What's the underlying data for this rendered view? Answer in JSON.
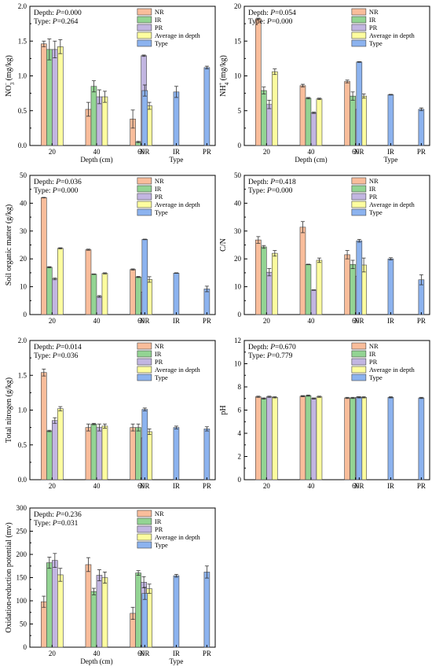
{
  "colors": {
    "NR": "#f9bd9b",
    "IR": "#93d493",
    "PR": "#c2b6e1",
    "Average in depth": "#fdfd9f",
    "Type": "#8cb3ef",
    "stroke": "#444444"
  },
  "chart_data": [
    {
      "type": "bar",
      "ylabel_lines": [
        "NO",
        "3",
        "−",
        " (mg/kg)"
      ],
      "xlabel_depth": "Depth (cm)",
      "xlabel_type": "Type",
      "stats": [
        {
          "prefix": "Depth: ",
          "p": "P",
          "value": "=0.000"
        },
        {
          "prefix": "Type: ",
          "p": "P",
          "value": "=0.264"
        }
      ],
      "ylim": [
        0,
        2.0
      ],
      "yticks": [
        "0.0",
        "0.5",
        "1.0",
        "1.5",
        "2.0"
      ],
      "depth_categories": [
        "20",
        "40",
        "60"
      ],
      "type_categories": [
        "NR",
        "IR",
        "PR"
      ],
      "legend": [
        "NR",
        "IR",
        "PR",
        "Average in depth",
        "Type"
      ],
      "series": [
        {
          "name": "NR",
          "values": [
            1.46,
            0.52,
            0.38
          ],
          "errors": [
            0.04,
            0.1,
            0.13
          ]
        },
        {
          "name": "IR",
          "values": [
            1.38,
            0.85,
            0.05
          ],
          "errors": [
            0.15,
            0.08,
            0.01
          ]
        },
        {
          "name": "PR",
          "values": [
            1.38,
            0.7,
            1.29
          ],
          "errors": [
            0.12,
            0.1,
            0.01
          ]
        },
        {
          "name": "Average in depth",
          "values": [
            1.42,
            0.7,
            0.57
          ],
          "errors": [
            0.1,
            0.08,
            0.05
          ]
        }
      ],
      "type_values": [
        0.79,
        0.77,
        1.12
      ],
      "type_errors": [
        0.08,
        0.08,
        0.02
      ]
    },
    {
      "type": "bar",
      "ylabel_lines": [
        "NH",
        "4",
        "+",
        " (mg/kg)"
      ],
      "xlabel_depth": "Depth (cm)",
      "xlabel_type": "Type",
      "stats": [
        {
          "prefix": "Depth: ",
          "p": "P",
          "value": "=0.054"
        },
        {
          "prefix": "Type: ",
          "p": "P",
          "value": "=0.000"
        }
      ],
      "ylim": [
        0,
        20
      ],
      "yticks": [
        "0",
        "5",
        "10",
        "15",
        "20"
      ],
      "depth_categories": [
        "20",
        "40",
        "60"
      ],
      "type_categories": [
        "NR",
        "IR",
        "PR"
      ],
      "legend": [
        "NR",
        "IR",
        "PR",
        "Average in depth",
        "Type"
      ],
      "series": [
        {
          "name": "NR",
          "values": [
            18.2,
            8.6,
            9.2
          ],
          "errors": [
            0.1,
            0.2,
            0.2
          ]
        },
        {
          "name": "IR",
          "values": [
            7.9,
            6.8,
            7.1
          ],
          "errors": [
            0.5,
            0.1,
            0.6
          ]
        },
        {
          "name": "PR",
          "values": [
            5.9,
            4.7,
            5.2
          ],
          "errors": [
            0.6,
            0.1,
            0.1
          ]
        },
        {
          "name": "Average in depth",
          "values": [
            10.6,
            6.7,
            7.1
          ],
          "errors": [
            0.4,
            0.1,
            0.3
          ]
        }
      ],
      "type_values": [
        12.0,
        7.3,
        5.2
      ],
      "type_errors": [
        0.05,
        0.05,
        0.2
      ]
    },
    {
      "type": "bar",
      "ylabel_lines": [
        "Soil organic matter (g/kg)"
      ],
      "xlabel_depth": "",
      "xlabel_type": "",
      "stats": [
        {
          "prefix": "Depth: ",
          "p": "P",
          "value": "=0.036"
        },
        {
          "prefix": "Type: ",
          "p": "P",
          "value": "=0.000"
        }
      ],
      "ylim": [
        0,
        50
      ],
      "yticks": [
        "0",
        "10",
        "20",
        "30",
        "40",
        "50"
      ],
      "depth_categories": [
        "20",
        "40",
        "60"
      ],
      "type_categories": [
        "NR",
        "IR",
        "PR"
      ],
      "legend": [
        "NR",
        "IR",
        "PR",
        "Average in depth",
        "Type"
      ],
      "series": [
        {
          "name": "NR",
          "values": [
            42.0,
            23.3,
            16.2
          ],
          "errors": [
            0.1,
            0.2,
            0.2
          ]
        },
        {
          "name": "IR",
          "values": [
            17.0,
            14.5,
            13.5
          ],
          "errors": [
            0.2,
            0.1,
            0.2
          ]
        },
        {
          "name": "PR",
          "values": [
            12.8,
            6.5,
            8.1
          ],
          "errors": [
            0.3,
            0.3,
            2.5
          ]
        },
        {
          "name": "Average in depth",
          "values": [
            23.8,
            14.8,
            12.6
          ],
          "errors": [
            0.2,
            0.2,
            1.0
          ]
        }
      ],
      "type_values": [
        27.0,
        14.9,
        9.2
      ],
      "type_errors": [
        0.1,
        0.1,
        1.0
      ]
    },
    {
      "type": "bar",
      "ylabel_lines": [
        "C/N"
      ],
      "xlabel_depth": "",
      "xlabel_type": "",
      "stats": [
        {
          "prefix": "Depth: ",
          "p": "P",
          "value": "=0.418"
        },
        {
          "prefix": "Type: ",
          "p": "P",
          "value": "=0.000"
        }
      ],
      "ylim": [
        0,
        50
      ],
      "yticks": [
        "0",
        "10",
        "20",
        "30",
        "40",
        "50"
      ],
      "depth_categories": [
        "20",
        "40",
        "60"
      ],
      "type_categories": [
        "NR",
        "IR",
        "PR"
      ],
      "legend": [
        "NR",
        "IR",
        "PR",
        "Average in depth",
        "Type"
      ],
      "series": [
        {
          "name": "NR",
          "values": [
            26.8,
            31.4,
            21.5
          ],
          "errors": [
            1.2,
            2.0,
            1.5
          ]
        },
        {
          "name": "IR",
          "values": [
            24.3,
            18.0,
            18.0
          ],
          "errors": [
            0.5,
            0.1,
            1.5
          ]
        },
        {
          "name": "PR",
          "values": [
            15.2,
            8.8,
            13.8
          ],
          "errors": [
            1.3,
            0.1,
            3.5
          ]
        },
        {
          "name": "Average in depth",
          "values": [
            22.0,
            19.5,
            17.8
          ],
          "errors": [
            1.0,
            0.8,
            2.5
          ]
        }
      ],
      "type_values": [
        26.5,
        20.0,
        12.5
      ],
      "type_errors": [
        0.5,
        0.4,
        1.8
      ]
    },
    {
      "type": "bar",
      "ylabel_lines": [
        "Total nitrogen (g/kg)"
      ],
      "xlabel_depth": "",
      "xlabel_type": "",
      "stats": [
        {
          "prefix": "Depth: ",
          "p": "P",
          "value": "=0.014"
        },
        {
          "prefix": "Type: ",
          "p": "P",
          "value": "=0.036"
        }
      ],
      "ylim": [
        0,
        2.0
      ],
      "yticks": [
        "0.0",
        "0.5",
        "1.0",
        "1.5",
        "2.0"
      ],
      "depth_categories": [
        "20",
        "40",
        "60"
      ],
      "type_categories": [
        "NR",
        "IR",
        "PR"
      ],
      "legend": [
        "NR",
        "IR",
        "PR",
        "Average in depth",
        "Type"
      ],
      "series": [
        {
          "name": "NR",
          "values": [
            1.54,
            0.75,
            0.75
          ],
          "errors": [
            0.05,
            0.05,
            0.05
          ]
        },
        {
          "name": "IR",
          "values": [
            0.7,
            0.8,
            0.75
          ],
          "errors": [
            0.01,
            0.01,
            0.05
          ]
        },
        {
          "name": "PR",
          "values": [
            0.85,
            0.75,
            0.6
          ],
          "errors": [
            0.04,
            0.05,
            0.01
          ]
        },
        {
          "name": "Average in depth",
          "values": [
            1.02,
            0.77,
            0.69
          ],
          "errors": [
            0.03,
            0.03,
            0.04
          ]
        }
      ],
      "type_values": [
        1.01,
        0.75,
        0.73
      ],
      "type_errors": [
        0.02,
        0.02,
        0.03
      ]
    },
    {
      "type": "bar",
      "ylabel_lines": [
        "pH"
      ],
      "xlabel_depth": "",
      "xlabel_type": "",
      "stats": [
        {
          "prefix": "Depth: ",
          "p": "P",
          "value": "=0.670"
        },
        {
          "prefix": "Type: ",
          "p": "P",
          "value": "=0.779"
        }
      ],
      "ylim": [
        0,
        12
      ],
      "yticks": [
        "0",
        "2",
        "4",
        "6",
        "8",
        "10",
        "12"
      ],
      "depth_categories": [
        "20",
        "40",
        "60"
      ],
      "type_categories": [
        "NR",
        "IR",
        "PR"
      ],
      "legend": [
        "NR",
        "IR",
        "PR",
        "Average in depth",
        "Type"
      ],
      "series": [
        {
          "name": "NR",
          "values": [
            7.15,
            7.2,
            7.05
          ],
          "errors": [
            0.05,
            0.05,
            0.05
          ]
        },
        {
          "name": "IR",
          "values": [
            7.0,
            7.25,
            7.05
          ],
          "errors": [
            0.05,
            0.05,
            0.05
          ]
        },
        {
          "name": "PR",
          "values": [
            7.15,
            7.0,
            7.1
          ],
          "errors": [
            0.05,
            0.05,
            0.05
          ]
        },
        {
          "name": "Average in depth",
          "values": [
            7.1,
            7.15,
            7.1
          ],
          "errors": [
            0.05,
            0.05,
            0.05
          ]
        }
      ],
      "type_values": [
        7.1,
        7.1,
        7.05
      ],
      "type_errors": [
        0.05,
        0.05,
        0.05
      ]
    },
    {
      "type": "bar",
      "ylabel_lines": [
        "Oxidation-reduction potential (mv)"
      ],
      "xlabel_depth": "Depth (cm)",
      "xlabel_type": "Type",
      "stats": [
        {
          "prefix": "Depth: ",
          "p": "P",
          "value": "=0.236"
        },
        {
          "prefix": "Type: ",
          "p": "P",
          "value": "=0.031"
        }
      ],
      "ylim": [
        0,
        300
      ],
      "yticks": [
        "0",
        "50",
        "100",
        "150",
        "200",
        "250",
        "300"
      ],
      "depth_categories": [
        "20",
        "40",
        "60"
      ],
      "type_categories": [
        "NR",
        "IR",
        "PR"
      ],
      "legend": [
        "NR",
        "IR",
        "PR",
        "Average in depth",
        "Type"
      ],
      "series": [
        {
          "name": "NR",
          "values": [
            98,
            178,
            73
          ],
          "errors": [
            12,
            15,
            13
          ]
        },
        {
          "name": "IR",
          "values": [
            182,
            120,
            160
          ],
          "errors": [
            12,
            7,
            5
          ]
        },
        {
          "name": "PR",
          "values": [
            187,
            155,
            140
          ],
          "errors": [
            15,
            12,
            12
          ]
        },
        {
          "name": "Average in depth",
          "values": [
            156,
            150,
            126
          ],
          "errors": [
            14,
            12,
            10
          ]
        }
      ],
      "type_values": [
        116,
        154,
        162
      ],
      "type_errors": [
        13,
        3,
        13
      ]
    }
  ]
}
